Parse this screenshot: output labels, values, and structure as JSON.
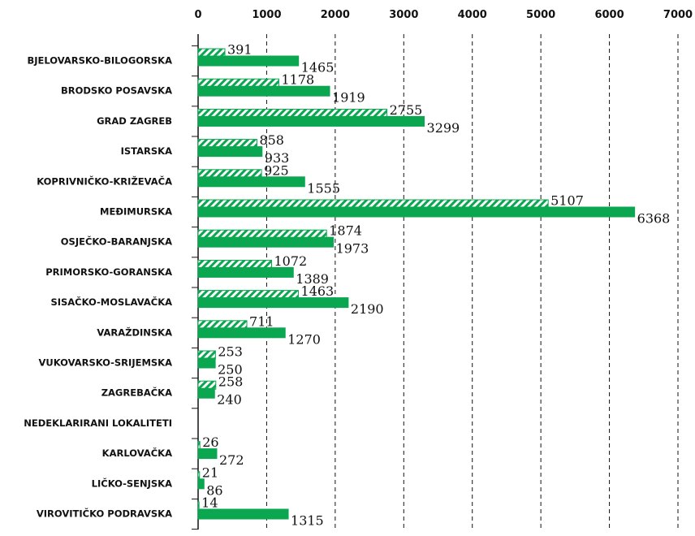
{
  "chart_data": {
    "type": "bar",
    "orientation": "horizontal",
    "categories": [
      "BJELOVARSKO-BILOGORSKA",
      "BRODSKO POSAVSKA",
      "GRAD ZAGREB",
      "ISTARSKA",
      "KOPRIVNIČKO-KRIŽEVAČA",
      "MEĐIMURSKA",
      "OSJEČKO-BARANJSKA",
      "PRIMORSKO-GORANSKA",
      "SISAČKO-MOSLAVAČKA",
      "VARAŽDINSKA",
      "VUKOVARSKO-SRIJEMSKA",
      "ZAGREBAČKA",
      "NEDEKLARIRANI LOKALITETI",
      "KARLOVAČKA",
      "LIČKO-SENJSKA",
      "VIROVITIČKO PODRAVSKA"
    ],
    "series": [
      {
        "color": "#0aa650",
        "pattern": "hatch",
        "values": [
          391,
          1178,
          2755,
          858,
          925,
          5107,
          1874,
          1072,
          1463,
          711,
          253,
          258,
          null,
          26,
          21,
          14
        ]
      },
      {
        "color": "#0aa650",
        "pattern": "solid",
        "values": [
          1465,
          1919,
          3299,
          933,
          1555,
          6368,
          1973,
          1389,
          2190,
          1270,
          250,
          240,
          null,
          272,
          86,
          1315
        ]
      }
    ],
    "xlim": [
      0,
      7000
    ],
    "xticks": [
      0,
      1000,
      2000,
      3000,
      4000,
      5000,
      6000,
      7000
    ],
    "grid": true
  }
}
